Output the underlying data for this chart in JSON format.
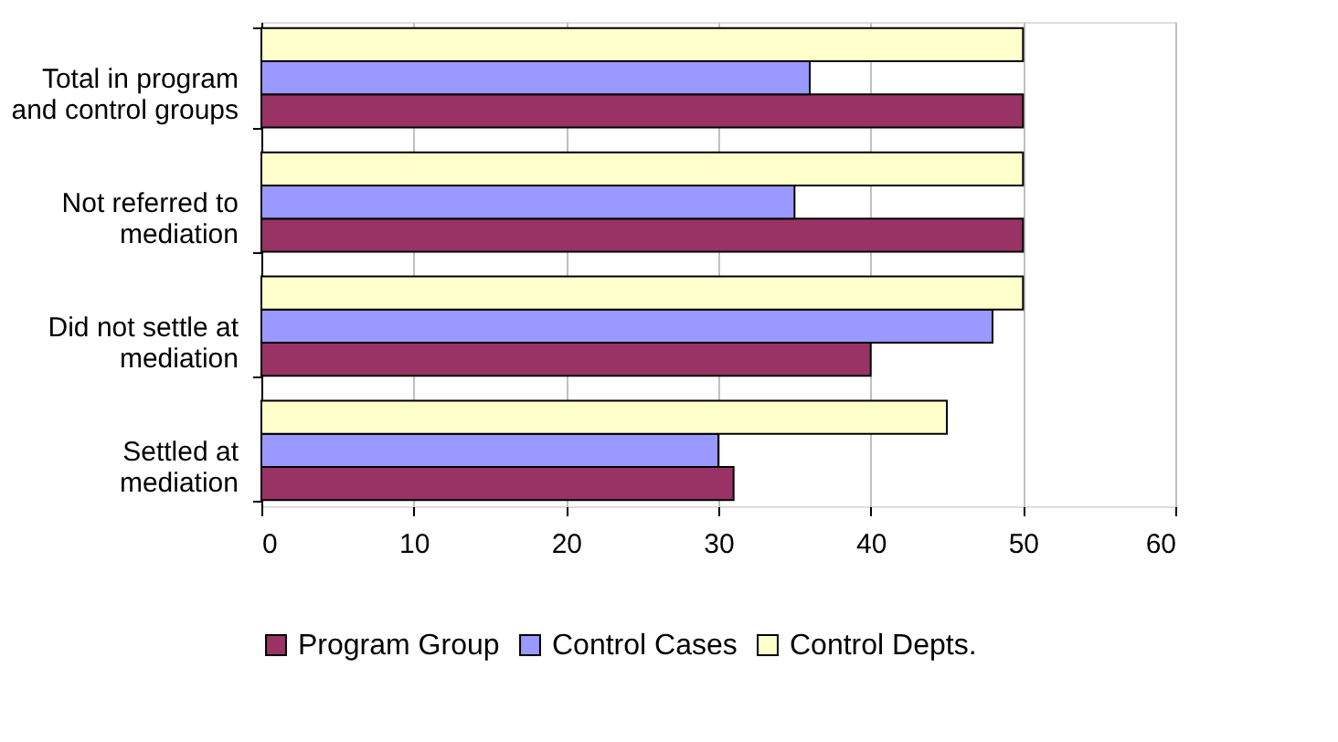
{
  "chart_data": {
    "type": "bar",
    "orientation": "horizontal",
    "categories": [
      "Total in program and control groups",
      "Not referred to mediation",
      "Did not settle at mediation",
      "Settled at mediation"
    ],
    "series": [
      {
        "name": "Program Group",
        "color": "#993366",
        "values": [
          50,
          50,
          40,
          31
        ]
      },
      {
        "name": "Control Cases",
        "color": "#9999ff",
        "values": [
          36,
          35,
          48,
          30
        ]
      },
      {
        "name": "Control Depts.",
        "color": "#ffffcc",
        "values": [
          50,
          50,
          50,
          45
        ]
      }
    ],
    "xlim": [
      0,
      60
    ],
    "xticks": [
      0,
      10,
      20,
      30,
      40,
      50,
      60
    ],
    "grid": "x",
    "legend": "bottom"
  }
}
